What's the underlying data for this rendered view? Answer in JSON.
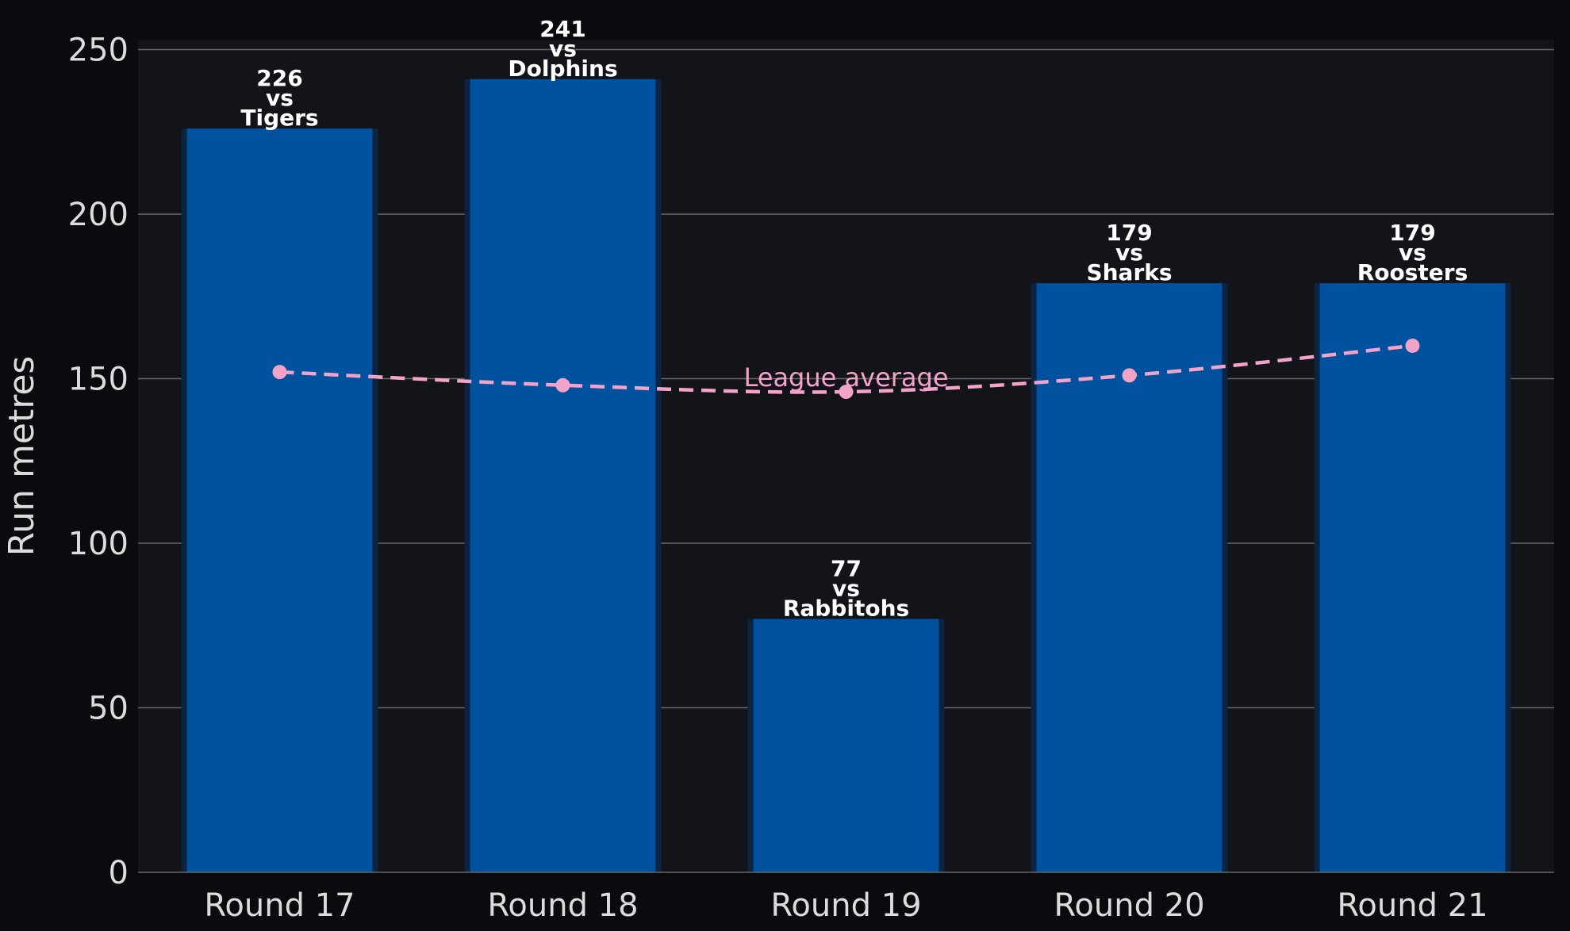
{
  "chart_data": {
    "type": "bar",
    "title": "",
    "xlabel": "",
    "ylabel": "Run metres",
    "ylim": [
      0,
      253
    ],
    "yticks": [
      0,
      50,
      100,
      150,
      200,
      250
    ],
    "grid": true,
    "categories": [
      "Round 17",
      "Round 18",
      "Round 19",
      "Round 20",
      "Round 21"
    ],
    "series": [
      {
        "values": [
          226,
          241,
          77,
          179,
          179
        ],
        "opponents": [
          "Tigers",
          "Dolphins",
          "Rabbitohs",
          "Sharks",
          "Roosters"
        ],
        "connector": "vs",
        "color": "#00529f"
      },
      {
        "name": "League average",
        "type": "line",
        "style": "dashed",
        "values": [
          152,
          148,
          146,
          151,
          160
        ],
        "color": "#f4a3c8"
      }
    ],
    "colors": {
      "background": "#0b0b0f",
      "plot_background": "#13131a",
      "bar": "#00529f",
      "bar_shadow": "#0d2342",
      "grid": "#666666",
      "text": "#dcdcdc",
      "average_line": "#f4a3c8"
    }
  }
}
